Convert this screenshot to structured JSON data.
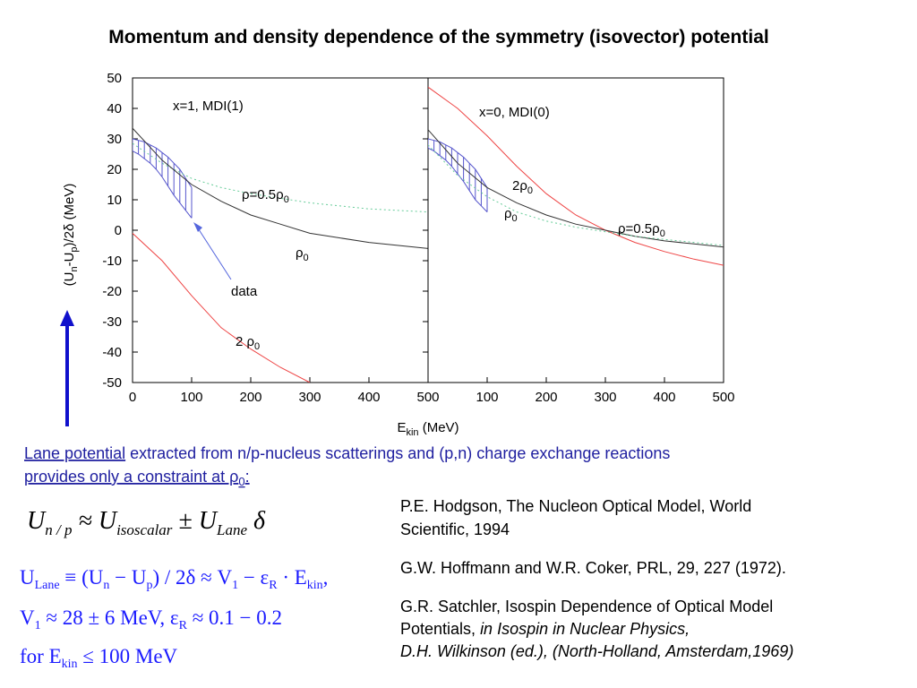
{
  "title": "Momentum and density dependence of the symmetry (isovector) potential",
  "y_axis_label": [
    "(U",
    "n",
    "-U",
    "p",
    ")/2δ (MeV)"
  ],
  "x_axis_label": [
    "E",
    "kin",
    " (MeV)"
  ],
  "chart_data": [
    {
      "type": "line",
      "title": "x=1, MDI(1)",
      "xlim": [
        0,
        500
      ],
      "ylim": [
        -50,
        50
      ],
      "xticks": [
        0,
        100,
        200,
        300,
        400,
        500
      ],
      "yticks": [
        -50,
        -40,
        -30,
        -20,
        -10,
        0,
        10,
        20,
        30,
        40,
        50
      ],
      "series": [
        {
          "name": [
            "ρ=0.5ρ",
            "0"
          ],
          "color": "#66cc99",
          "dashed": true,
          "x": [
            0,
            50,
            100,
            150,
            200,
            250,
            300,
            350,
            400,
            450,
            500
          ],
          "values": [
            28.5,
            22,
            17,
            14,
            12,
            10.5,
            9,
            8,
            7,
            6.5,
            6
          ]
        },
        {
          "name": [
            "ρ",
            "0"
          ],
          "color": "#333333",
          "x": [
            0,
            50,
            100,
            150,
            200,
            250,
            300,
            350,
            400,
            450,
            500
          ],
          "values": [
            33.5,
            23,
            15,
            9.5,
            5,
            2,
            -1,
            -2.5,
            -4,
            -5,
            -6
          ]
        },
        {
          "name": [
            "2  ρ",
            "0"
          ],
          "color": "#ee4444",
          "x": [
            0,
            50,
            100,
            150,
            200,
            250,
            300
          ],
          "values": [
            -1,
            -10,
            -21.5,
            -32,
            -39,
            -45,
            -50
          ]
        }
      ],
      "band": {
        "color": "#5555cc",
        "x": [
          0,
          10,
          20,
          30,
          40,
          50,
          60,
          70,
          80,
          90,
          100
        ],
        "upper": [
          30,
          29.5,
          29,
          28,
          27,
          25.5,
          24,
          22,
          20,
          17,
          14
        ],
        "lower": [
          26,
          25,
          23.5,
          22,
          20,
          17.5,
          14.5,
          11.5,
          9,
          6.5,
          4
        ]
      },
      "annotations": [
        "data"
      ]
    },
    {
      "type": "line",
      "title": "x=0, MDI(0)",
      "xlim": [
        0,
        500
      ],
      "ylim": [
        -50,
        50
      ],
      "xticks": [
        100,
        200,
        300,
        400,
        500
      ],
      "series": [
        {
          "name": [
            "2ρ",
            "0"
          ],
          "color": "#ee4444",
          "x": [
            0,
            50,
            100,
            150,
            200,
            250,
            300,
            350,
            400,
            450,
            500
          ],
          "values": [
            47,
            40,
            31,
            21,
            12,
            5,
            0,
            -4,
            -7,
            -9.5,
            -11.5
          ]
        },
        {
          "name": [
            "ρ",
            "0"
          ],
          "color": "#333333",
          "x": [
            0,
            50,
            100,
            150,
            200,
            250,
            300,
            350,
            400,
            450,
            500
          ],
          "values": [
            33,
            22,
            14,
            9,
            5,
            2,
            0,
            -2,
            -3.5,
            -4.5,
            -5.5
          ]
        },
        {
          "name": [
            "ρ=0.5ρ",
            "0"
          ],
          "color": "#66cc99",
          "dashed": true,
          "x": [
            0,
            50,
            100,
            150,
            200,
            250,
            300,
            350,
            400,
            450,
            500
          ],
          "values": [
            28,
            18,
            11,
            6,
            3,
            1,
            -0.5,
            -2,
            -3,
            -4,
            -5
          ]
        }
      ],
      "band": {
        "color": "#5555cc",
        "x": [
          0,
          10,
          20,
          30,
          40,
          50,
          60,
          70,
          80,
          90,
          100
        ],
        "upper": [
          30,
          29.5,
          29,
          28,
          27,
          25.5,
          24,
          22,
          20,
          17,
          14
        ],
        "lower": [
          27,
          26,
          24.5,
          23,
          21,
          18.5,
          16,
          13,
          10,
          8,
          6
        ]
      }
    }
  ],
  "lane_text": [
    "Lane potential",
    " extracted from n/p-nucleus scatterings and (p,n) charge exchange reactions",
    "provides only a constraint at ρ",
    "0",
    ":"
  ],
  "equations": [
    [
      "U",
      "n / p",
      " ≈ U",
      "isoscalar",
      " ± U",
      "Lane",
      " δ"
    ],
    [
      "U",
      "Lane",
      " ≡ (U",
      "n",
      " − U",
      "p",
      ") / 2δ ≈ V",
      "1",
      " − ε",
      "R",
      " · E",
      "kin",
      ","
    ],
    [
      "V",
      "1",
      " ≈ 28 ± 6 MeV,  ε",
      "R",
      " ≈ 0.1 − 0.2"
    ],
    [
      "for E",
      "kin",
      " ≤ 100 MeV"
    ]
  ],
  "references": [
    [
      "P.E. Hodgson, The Nucleon Optical Model, World",
      "Scientific, 1994"
    ],
    [
      "G.W. Hoffmann and W.R. Coker, PRL, 29, 227 (1972)."
    ],
    [
      "G.R. Satchler, Isospin Dependence of Optical Model",
      "Potentials, ",
      "in Isospin in Nuclear Physics,",
      "D.H. Wilkinson (ed.), (North-Holland, Amsterdam,1969)"
    ]
  ]
}
